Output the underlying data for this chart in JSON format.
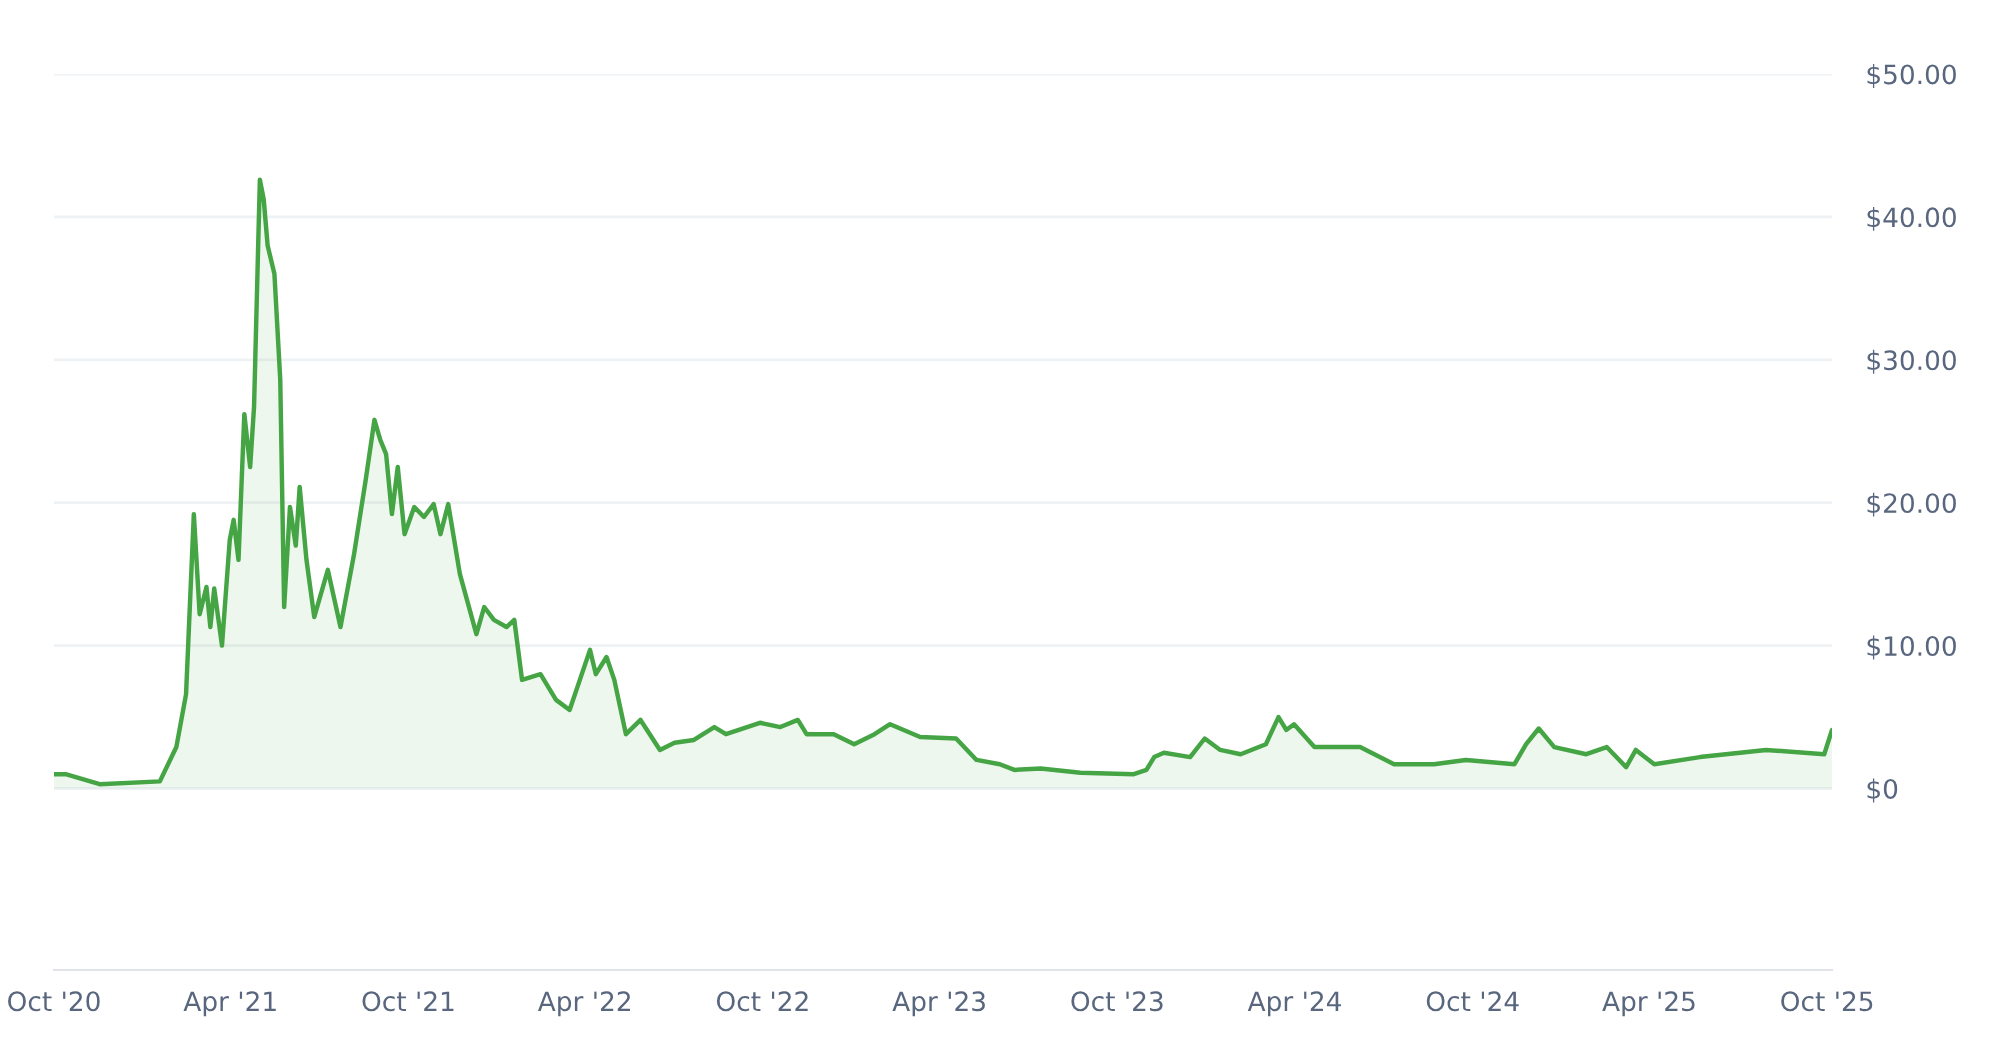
{
  "chart_data": {
    "type": "area",
    "color": "#45a545",
    "grid": "y",
    "legend": false,
    "x": [
      "2020-10-01",
      "2020-10-13",
      "2020-11-17",
      "2021-01-18",
      "2021-02-04",
      "2021-02-14",
      "2021-02-22",
      "2021-02-28",
      "2021-03-07",
      "2021-03-11",
      "2021-03-15",
      "2021-03-23",
      "2021-03-31",
      "2021-04-04",
      "2021-04-09",
      "2021-04-15",
      "2021-04-21",
      "2021-04-25",
      "2021-05-01",
      "2021-05-05",
      "2021-05-09",
      "2021-05-16",
      "2021-05-22",
      "2021-05-26",
      "2021-06-01",
      "2021-06-07",
      "2021-06-11",
      "2021-06-18",
      "2021-06-26",
      "2021-07-10",
      "2021-07-23",
      "2021-08-06",
      "2021-08-18",
      "2021-08-27",
      "2021-09-02",
      "2021-09-08",
      "2021-09-14",
      "2021-09-20",
      "2021-09-27",
      "2021-10-07",
      "2021-10-17",
      "2021-10-27",
      "2021-11-03",
      "2021-11-11",
      "2021-11-23",
      "2021-12-10",
      "2021-12-18",
      "2021-12-28",
      "2022-01-10",
      "2022-01-18",
      "2022-01-26",
      "2022-02-14",
      "2022-03-02",
      "2022-03-16",
      "2022-04-06",
      "2022-04-12",
      "2022-04-23",
      "2022-05-01",
      "2022-05-13",
      "2022-05-28",
      "2022-06-17",
      "2022-07-02",
      "2022-07-22",
      "2022-08-12",
      "2022-08-24",
      "2022-09-28",
      "2022-10-19",
      "2022-11-06",
      "2022-11-15",
      "2022-12-13",
      "2023-01-03",
      "2023-01-24",
      "2023-02-09",
      "2023-03-12",
      "2023-04-18",
      "2023-05-09",
      "2023-06-02",
      "2023-06-17",
      "2023-07-14",
      "2023-08-24",
      "2023-10-18",
      "2023-10-31",
      "2023-11-08",
      "2023-11-18",
      "2023-12-15",
      "2023-12-30",
      "2024-01-15",
      "2024-02-05",
      "2024-03-02",
      "2024-03-15",
      "2024-03-23",
      "2024-03-31",
      "2024-04-21",
      "2024-06-07",
      "2024-07-12",
      "2024-08-22",
      "2024-09-24",
      "2024-11-13",
      "2024-11-25",
      "2024-12-08",
      "2024-12-24",
      "2025-01-26",
      "2025-02-16",
      "2025-03-08",
      "2025-03-18",
      "2025-04-06",
      "2025-05-23",
      "2025-07-30",
      "2025-09-28",
      "2025-10-06"
    ],
    "values": [
      1.0,
      1.0,
      0.3,
      0.5,
      2.9,
      6.6,
      19.2,
      12.2,
      14.1,
      11.3,
      14.0,
      10.0,
      17.4,
      18.8,
      16.0,
      26.2,
      22.5,
      26.7,
      42.6,
      41.2,
      38.0,
      36.0,
      28.6,
      12.7,
      19.7,
      17.0,
      21.1,
      16.0,
      12.0,
      15.3,
      11.3,
      16.4,
      21.6,
      25.8,
      24.4,
      23.4,
      19.2,
      22.5,
      17.8,
      19.7,
      19.0,
      19.9,
      17.8,
      19.9,
      15.0,
      10.8,
      12.7,
      11.8,
      11.3,
      11.8,
      7.6,
      8.0,
      6.2,
      5.5,
      9.7,
      8.0,
      9.2,
      7.6,
      3.8,
      4.8,
      2.7,
      3.2,
      3.4,
      4.3,
      3.8,
      4.6,
      4.3,
      4.8,
      3.8,
      3.8,
      3.1,
      3.8,
      4.5,
      3.6,
      3.5,
      2.0,
      1.7,
      1.3,
      1.4,
      1.1,
      1.0,
      1.3,
      2.2,
      2.5,
      2.2,
      3.5,
      2.7,
      2.4,
      3.1,
      5.0,
      4.1,
      4.5,
      2.9,
      2.9,
      1.7,
      1.7,
      2.0,
      1.7,
      3.1,
      4.2,
      2.9,
      2.4,
      2.9,
      1.5,
      2.7,
      1.7,
      2.2,
      2.7,
      2.4,
      4.1
    ],
    "xlim": [
      "2020-10-01",
      "2025-10-06"
    ],
    "xticks": [
      {
        "value": "2020-10-01",
        "label": "Oct '20"
      },
      {
        "value": "2021-04-01",
        "label": "Apr '21"
      },
      {
        "value": "2021-10-01",
        "label": "Oct '21"
      },
      {
        "value": "2022-04-01",
        "label": "Apr '22"
      },
      {
        "value": "2022-10-01",
        "label": "Oct '22"
      },
      {
        "value": "2023-04-01",
        "label": "Apr '23"
      },
      {
        "value": "2023-10-01",
        "label": "Oct '23"
      },
      {
        "value": "2024-04-01",
        "label": "Apr '24"
      },
      {
        "value": "2024-10-01",
        "label": "Oct '24"
      },
      {
        "value": "2025-04-01",
        "label": "Apr '25"
      },
      {
        "value": "2025-10-01",
        "label": "Oct '25"
      }
    ],
    "ylim": [
      -12.7,
      50
    ],
    "yticks": [
      {
        "value": 0,
        "label": "$0"
      },
      {
        "value": 10,
        "label": "$10.00"
      },
      {
        "value": 20,
        "label": "$20.00"
      },
      {
        "value": 30,
        "label": "$30.00"
      },
      {
        "value": 40,
        "label": "$40.00"
      },
      {
        "value": 50,
        "label": "$50.00"
      }
    ]
  }
}
